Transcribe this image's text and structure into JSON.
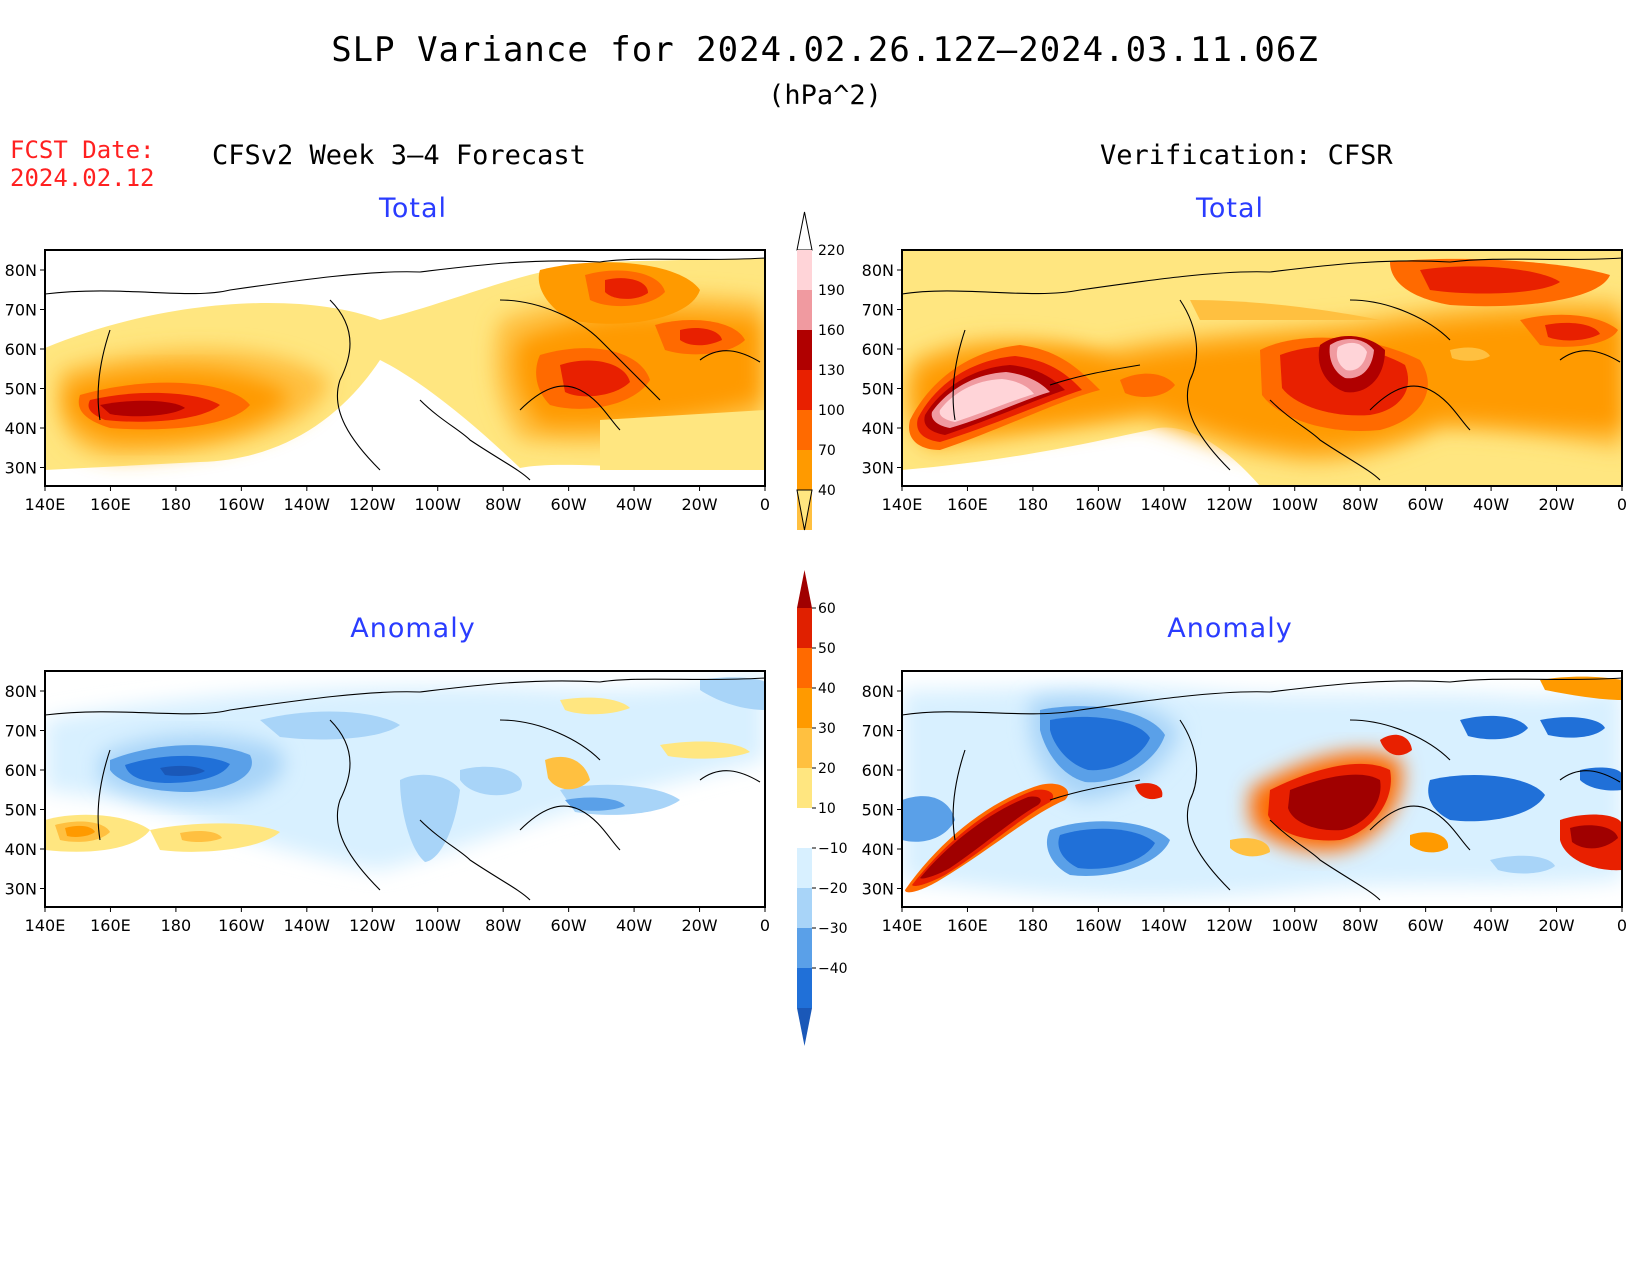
{
  "title": "SLP Variance for 2024.02.26.12Z–2024.03.11.06Z",
  "units": "(hPa^2)",
  "fcst": {
    "label": "FCST Date:",
    "date": "2024.02.12"
  },
  "columns": {
    "left": "CFSv2 Week 3–4 Forecast",
    "right": "Verification: CFSR"
  },
  "panels": [
    {
      "id": "fcst-total",
      "heading": "Total"
    },
    {
      "id": "verif-total",
      "heading": "Total"
    },
    {
      "id": "fcst-anom",
      "heading": "Anomaly"
    },
    {
      "id": "verif-anom",
      "heading": "Anomaly"
    }
  ],
  "map_axes": {
    "lon_labels": [
      "140E",
      "160E",
      "180",
      "160W",
      "140W",
      "120W",
      "100W",
      "80W",
      "60W",
      "40W",
      "20W",
      "0"
    ],
    "lat_labels": [
      "80N",
      "70N",
      "60N",
      "50N",
      "40N",
      "30N"
    ]
  },
  "colorbars": {
    "total": {
      "levels": [
        "40",
        "70",
        "100",
        "130",
        "160",
        "190",
        "220"
      ],
      "colors": [
        "#ffe680",
        "#ffc040",
        "#ff9a00",
        "#ff6a00",
        "#e82000",
        "#b00000",
        "#f09aa0",
        "#ffd4d8"
      ]
    },
    "anomaly": {
      "levels": [
        "60",
        "50",
        "40",
        "30",
        "20",
        "10",
        "−10",
        "−20",
        "−30",
        "−40"
      ],
      "colors": [
        "#a00000",
        "#e02000",
        "#ff6a00",
        "#ff9a00",
        "#ffc040",
        "#ffe680",
        "#ffffff",
        "#d8f0ff",
        "#a8d4f8",
        "#5aa0e8",
        "#2070d8",
        "#1a58b8"
      ]
    }
  }
}
